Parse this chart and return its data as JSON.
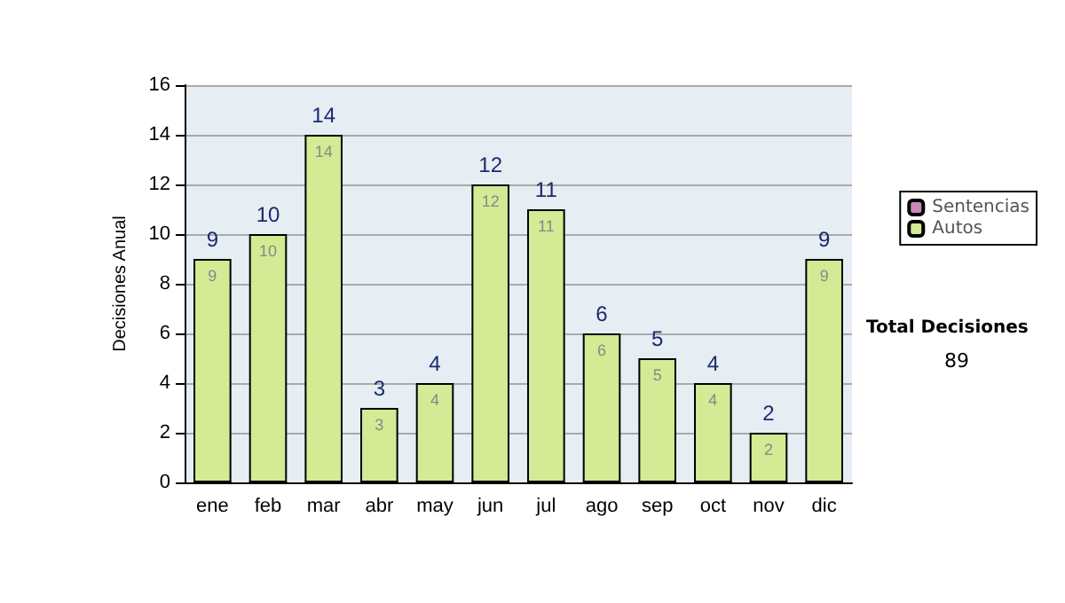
{
  "chart_data": {
    "type": "bar",
    "stacked": true,
    "ylabel": "Decisiones Anual",
    "categories": [
      "ene",
      "feb",
      "mar",
      "abr",
      "may",
      "jun",
      "jul",
      "ago",
      "sep",
      "oct",
      "nov",
      "dic"
    ],
    "series": [
      {
        "name": "Sentencias",
        "color": "#cc88bb",
        "values": [
          0,
          0,
          0,
          0,
          0,
          0,
          0,
          0,
          0,
          0,
          0,
          0
        ]
      },
      {
        "name": "Autos",
        "color": "#d4ea94",
        "values": [
          9,
          10,
          14,
          3,
          4,
          12,
          11,
          6,
          5,
          4,
          2,
          9
        ],
        "value_labels": [
          "9",
          "10",
          "14",
          "3",
          "4",
          "12",
          "11",
          "6",
          "5",
          "4",
          "2",
          "9"
        ]
      }
    ],
    "totals": [
      "9",
      "10",
      "14",
      "3",
      "4",
      "12",
      "11",
      "6",
      "5",
      "4",
      "2",
      "9"
    ],
    "ylim": [
      0,
      16
    ],
    "yticks": [
      0,
      2,
      4,
      6,
      8,
      10,
      12,
      14,
      16
    ],
    "grid": "y",
    "legend": "right",
    "annotations": [
      "Total Decisiones",
      "89"
    ]
  }
}
